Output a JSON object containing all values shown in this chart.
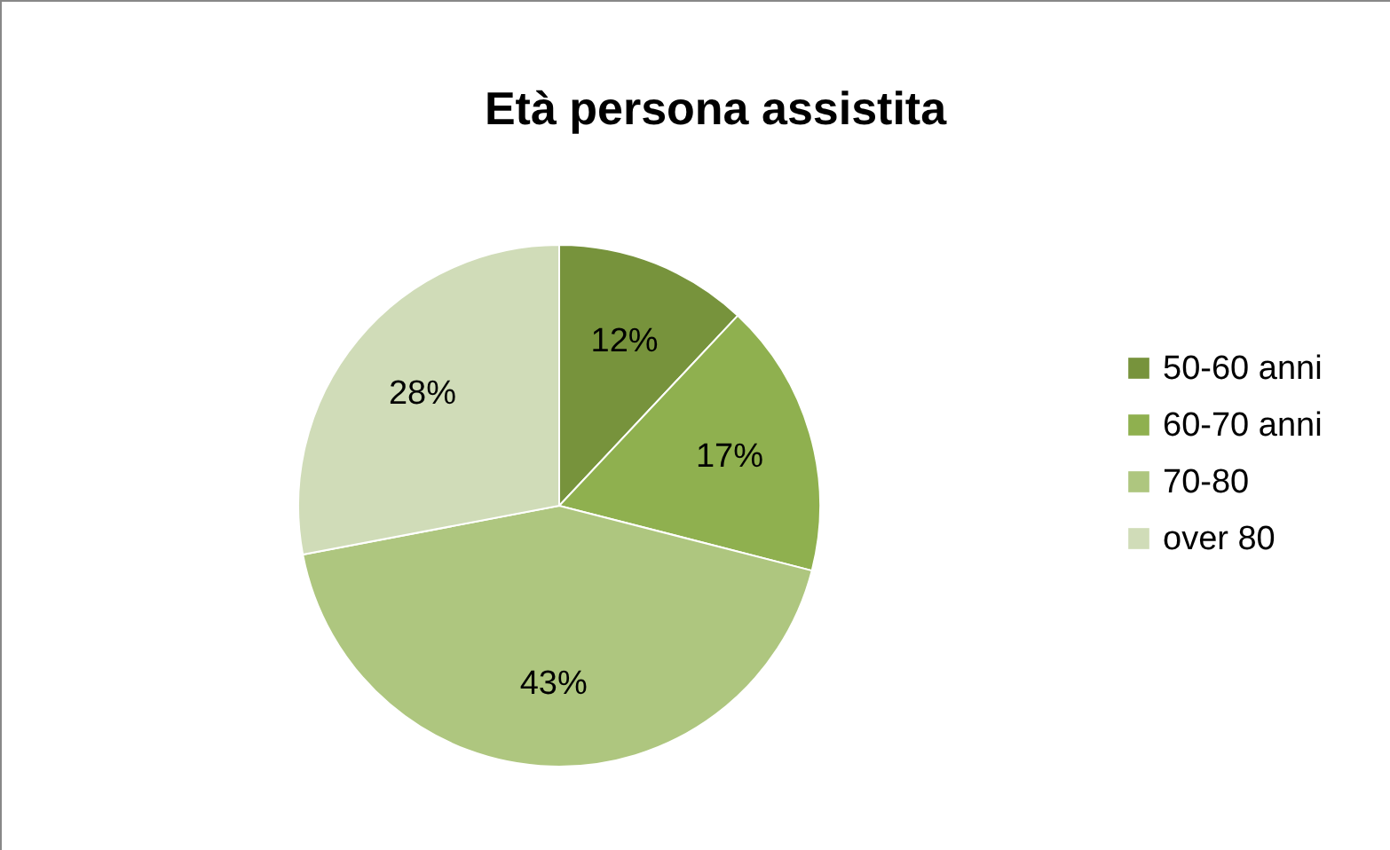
{
  "chart_data": {
    "type": "pie",
    "title": "Età persona assistita",
    "categories": [
      "50-60 anni",
      "60-70 anni",
      "70-80",
      "over 80"
    ],
    "values": [
      12,
      17,
      43,
      28
    ],
    "colors": [
      "#77933c",
      "#8fb04f",
      "#aec67f",
      "#d0dcb8"
    ],
    "value_labels": [
      "12%",
      "17%",
      "43%",
      "28%"
    ],
    "legend": "right"
  }
}
